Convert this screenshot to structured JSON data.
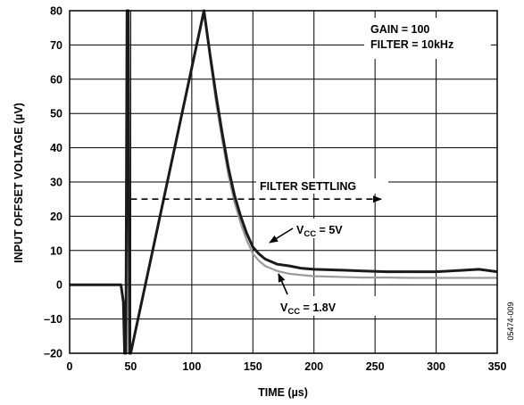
{
  "chart_data": {
    "type": "line",
    "title": "",
    "xlabel": "TIME (µs)",
    "ylabel": "INPUT OFFSET VOLTAGE (µV)",
    "xlim": [
      0,
      350
    ],
    "ylim": [
      -20,
      80
    ],
    "xticks": [
      0,
      50,
      100,
      150,
      200,
      250,
      300,
      350
    ],
    "yticks": [
      -20,
      -10,
      0,
      10,
      20,
      30,
      40,
      50,
      60,
      70,
      80
    ],
    "grid": true,
    "legend": "none",
    "series": [
      {
        "label_main": "V",
        "label_sub": "CC",
        "label_rest": " = 5V",
        "color": "#1a1a1a",
        "x": [
          0,
          38,
          42,
          44,
          45,
          46,
          47,
          48,
          49,
          50,
          110,
          115,
          120,
          125,
          130,
          135,
          140,
          145,
          150,
          155,
          160,
          170,
          180,
          190,
          200,
          220,
          240,
          260,
          280,
          300,
          320,
          335,
          350
        ],
        "y": [
          0,
          0,
          0,
          -5,
          -20,
          -20,
          80,
          80,
          -20,
          -20,
          80,
          67,
          55,
          44,
          34,
          26,
          20,
          15,
          11,
          9,
          7.5,
          6,
          5.5,
          4.8,
          4.5,
          4.3,
          4,
          3.8,
          3.8,
          3.8,
          4.2,
          4.5,
          3.8
        ]
      },
      {
        "label_main": "V",
        "label_sub": "CC",
        "label_rest": " = 1.8V",
        "color": "#9a9a9a",
        "x": [
          50,
          110,
          115,
          120,
          125,
          130,
          135,
          140,
          145,
          150,
          155,
          160,
          170,
          180,
          190,
          200,
          220,
          240,
          260,
          280,
          300,
          320,
          340,
          350
        ],
        "y": [
          -20,
          80,
          66,
          53,
          42,
          32,
          24,
          18,
          13,
          9,
          7,
          5.5,
          4,
          3.2,
          2.8,
          2.5,
          2.3,
          2.1,
          2.1,
          2.0,
          2.0,
          2.0,
          2.0,
          2.0
        ]
      }
    ],
    "annotations": {
      "gain": "GAIN = 100",
      "filter": "FILTER = 10kHz",
      "settling": "FILTER SETTLING",
      "settling_arrow": {
        "x_from": 50,
        "x_to": 255,
        "y": 25
      }
    }
  },
  "figure_id": "05474-009"
}
